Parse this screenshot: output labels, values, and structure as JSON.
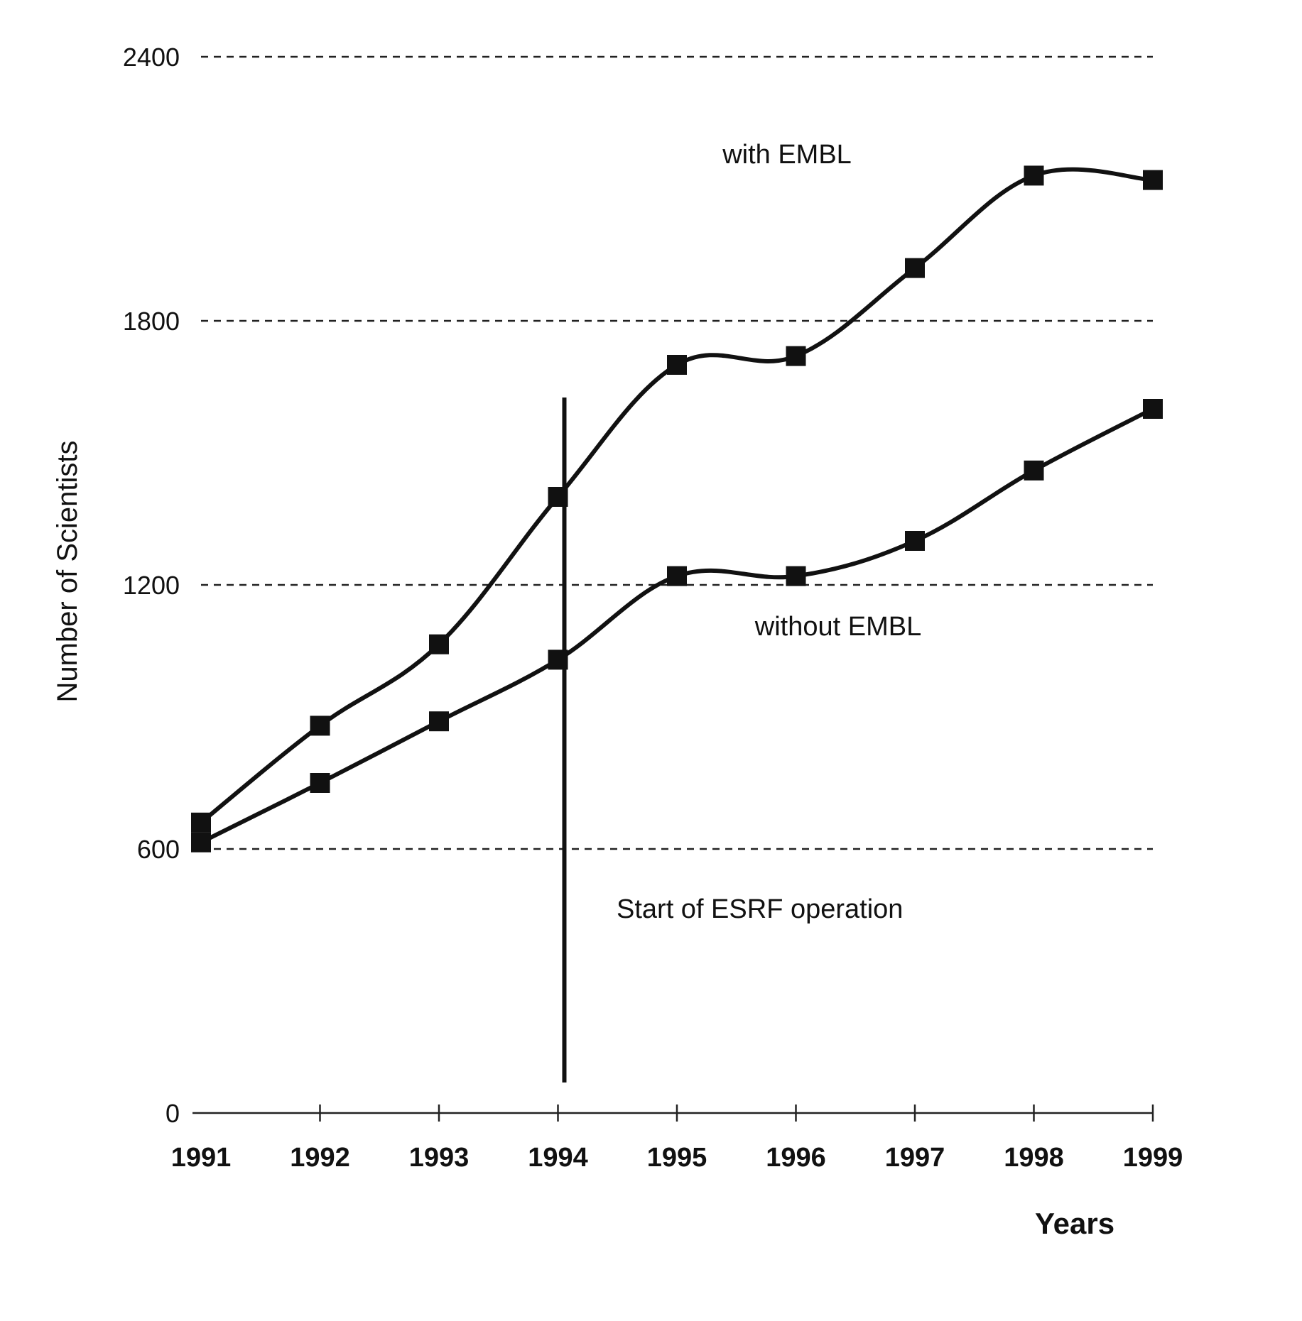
{
  "chart_data": {
    "type": "line",
    "title": "",
    "xlabel": "Years",
    "ylabel": "Number of Scientists",
    "categories": [
      "1991",
      "1992",
      "1993",
      "1994",
      "1995",
      "1996",
      "1997",
      "1998",
      "1999"
    ],
    "series": [
      {
        "name": "with EMBL",
        "values": [
          660,
          880,
          1065,
          1400,
          1700,
          1720,
          1920,
          2130,
          2120
        ]
      },
      {
        "name": "without EMBL",
        "values": [
          615,
          750,
          890,
          1030,
          1220,
          1220,
          1300,
          1460,
          1600
        ]
      }
    ],
    "ylim": [
      0,
      2400
    ],
    "yticks": [
      0,
      600,
      1200,
      1800,
      2400
    ],
    "grid": true,
    "annotations": [
      {
        "text": "with EMBL"
      },
      {
        "text": "without EMBL"
      },
      {
        "text": "Start of ESRF operation",
        "x": "1994"
      }
    ]
  }
}
